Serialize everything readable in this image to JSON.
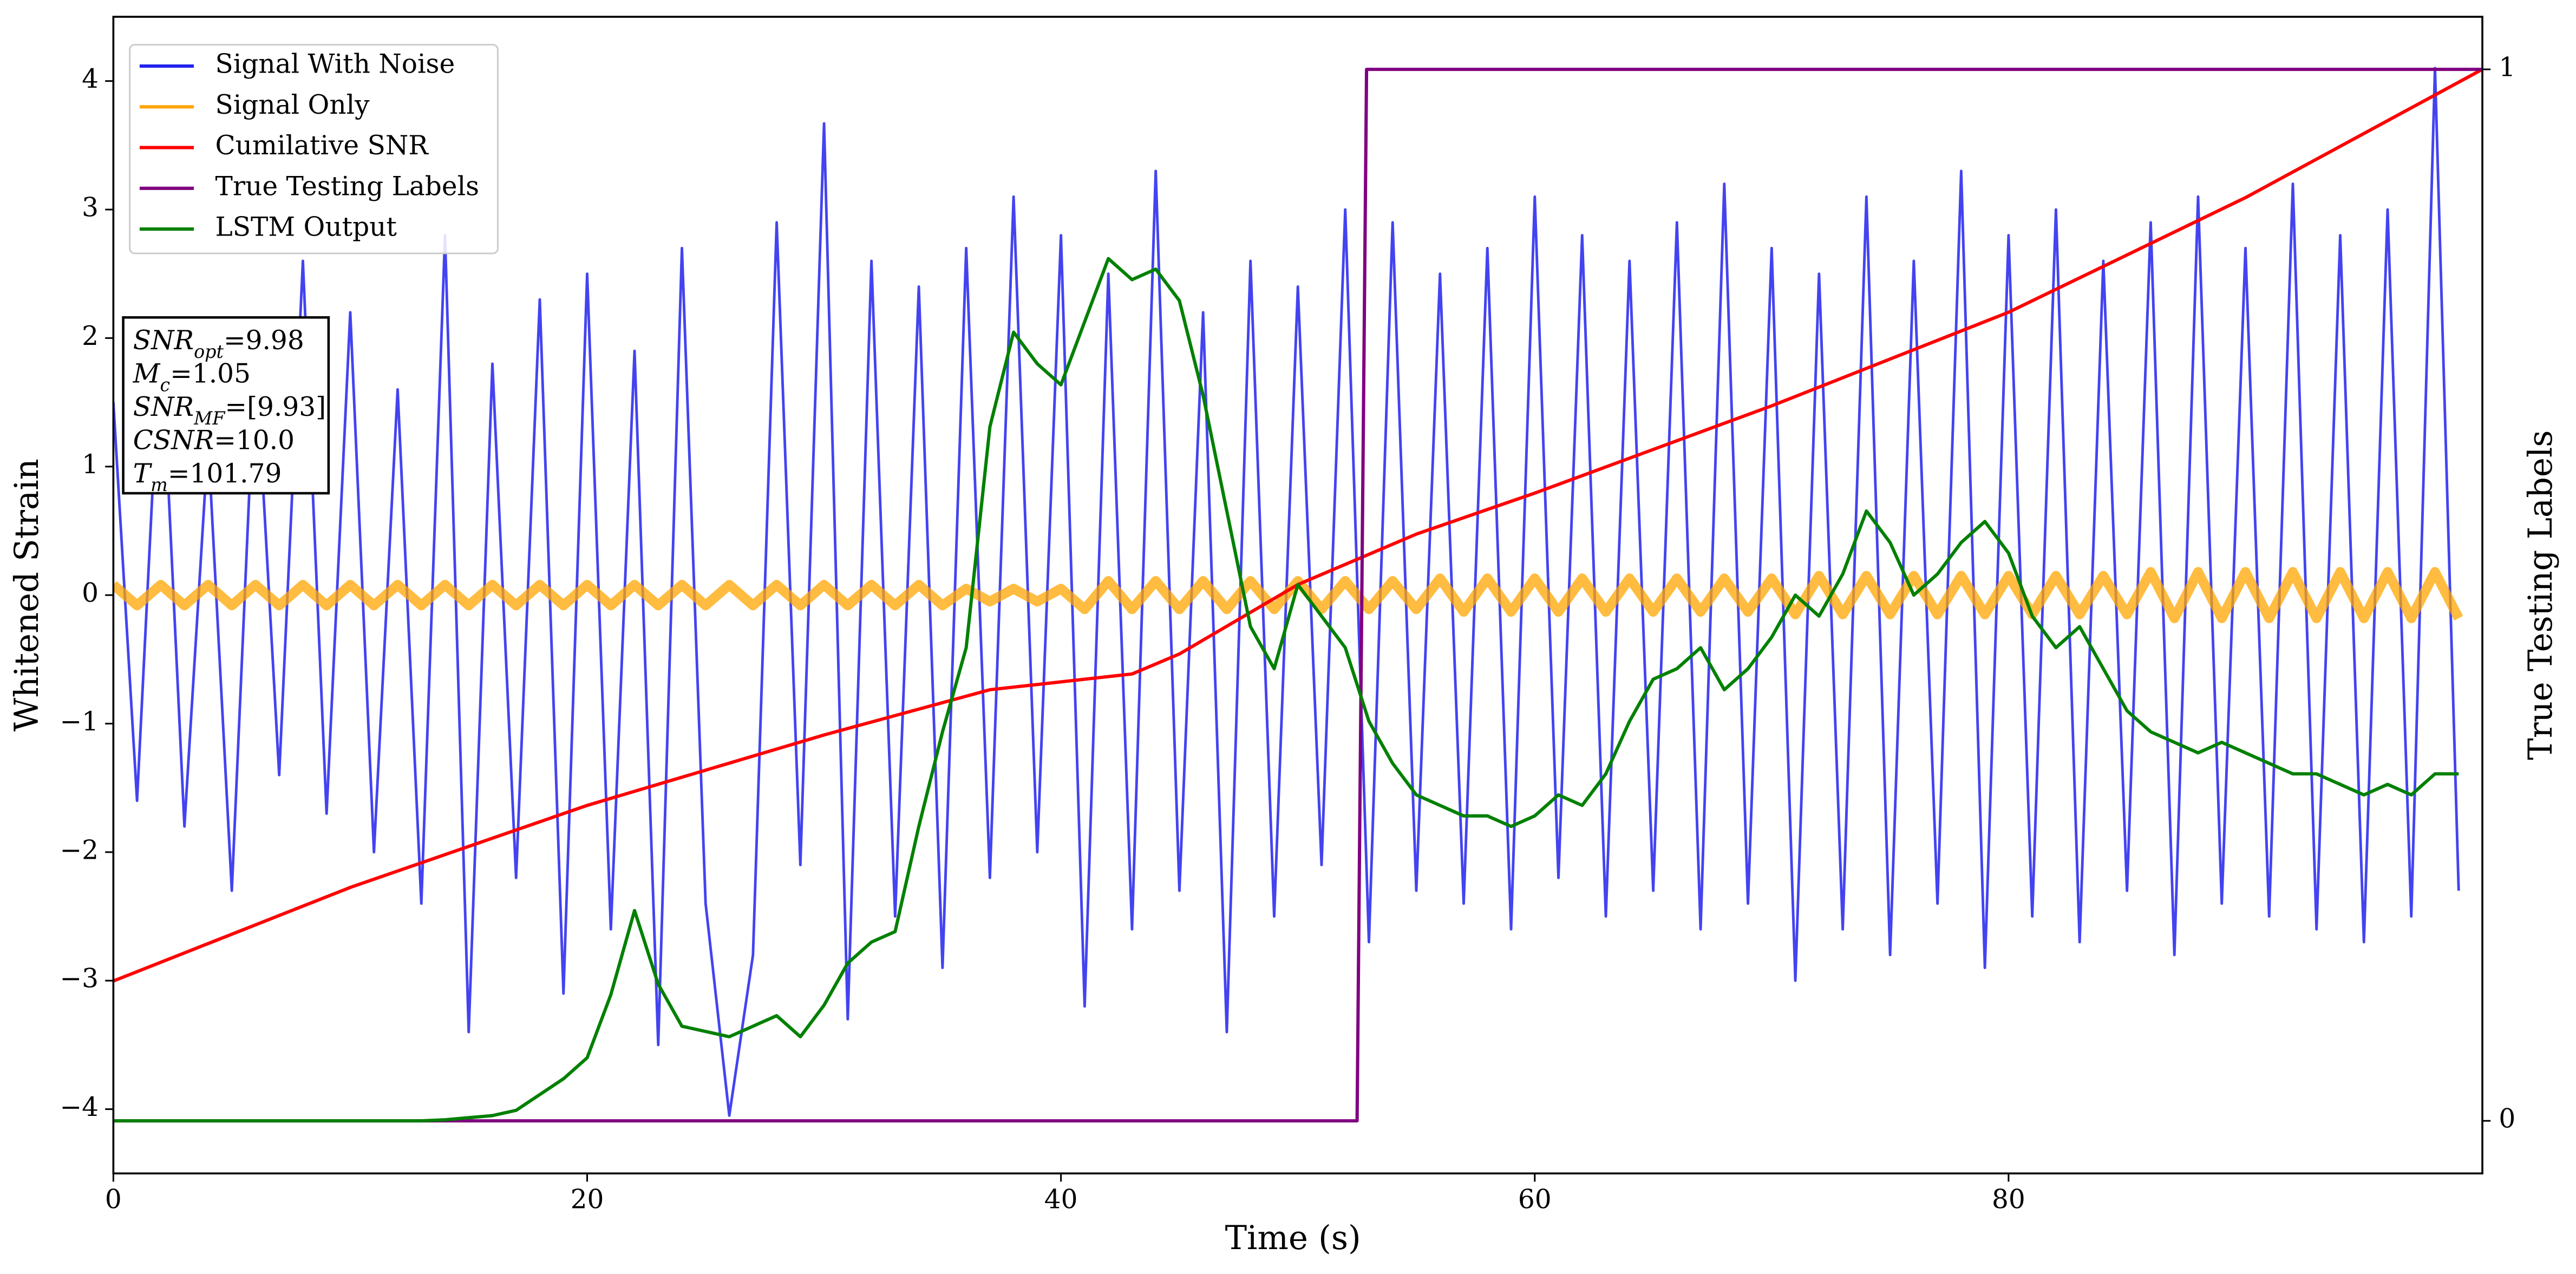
{
  "chart_data": {
    "type": "line",
    "xlabel": "Time (s)",
    "ylabel": "Whitened Strain",
    "y2label": "True Testing Labels",
    "xlim": [
      0,
      100
    ],
    "ylim": [
      -4.5,
      4.5
    ],
    "y2lim": [
      -0.05,
      1.05
    ],
    "xticks": [
      0,
      20,
      40,
      60,
      80
    ],
    "yticks": [
      {
        "value": -4,
        "label": "−4"
      },
      {
        "value": -3,
        "label": "−3"
      },
      {
        "value": -2,
        "label": "−2"
      },
      {
        "value": -1,
        "label": "−1"
      },
      0,
      1,
      2,
      3,
      4
    ],
    "y2ticks": [
      0,
      1
    ],
    "legend": "upper left",
    "x": [
      0,
      1,
      2,
      3,
      4,
      5,
      6,
      7,
      8,
      9,
      10,
      11,
      12,
      13,
      14,
      15,
      16,
      17,
      18,
      19,
      20,
      21,
      22,
      23,
      24,
      25,
      26,
      27,
      28,
      29,
      30,
      31,
      32,
      33,
      34,
      35,
      36,
      37,
      38,
      39,
      40,
      41,
      42,
      43,
      44,
      45,
      46,
      47,
      48,
      49,
      50,
      51,
      52,
      53,
      54,
      55,
      56,
      57,
      58,
      59,
      60,
      61,
      62,
      63,
      64,
      65,
      66,
      67,
      68,
      69,
      70,
      71,
      72,
      73,
      74,
      75,
      76,
      77,
      78,
      79,
      80,
      81,
      82,
      83,
      84,
      85,
      86,
      87,
      88,
      89,
      90,
      91,
      92,
      93,
      94,
      95,
      96,
      97,
      98,
      99
    ],
    "series": [
      {
        "name": "Signal With Noise",
        "color": "#2222ee",
        "values": [
          1.5,
          -1.6,
          2.1,
          -1.8,
          1.2,
          -2.3,
          1.9,
          -1.4,
          2.6,
          -1.7,
          2.2,
          -2.0,
          1.6,
          -2.4,
          2.8,
          -3.4,
          1.8,
          -2.2,
          2.3,
          -3.1,
          2.5,
          -2.6,
          1.9,
          -3.5,
          2.7,
          -2.4,
          -4.05,
          -2.8,
          2.9,
          -2.1,
          3.67,
          -3.3,
          2.6,
          -2.5,
          2.4,
          -2.9,
          2.7,
          -2.2,
          3.1,
          -2.0,
          2.8,
          -3.2,
          2.5,
          -2.6,
          3.3,
          -2.3,
          2.2,
          -3.4,
          2.6,
          -2.5,
          2.4,
          -2.1,
          3.0,
          -2.7,
          2.9,
          -2.3,
          2.5,
          -2.4,
          2.7,
          -2.6,
          3.1,
          -2.2,
          2.8,
          -2.5,
          2.6,
          -2.3,
          2.9,
          -2.6,
          3.2,
          -2.4,
          2.7,
          -3.0,
          2.5,
          -2.6,
          3.1,
          -2.8,
          2.6,
          -2.4,
          3.3,
          -2.9,
          2.8,
          -2.5,
          3.0,
          -2.7,
          2.6,
          -2.3,
          2.9,
          -2.8,
          3.1,
          -2.4,
          2.7,
          -2.5,
          3.2,
          -2.6,
          2.8,
          -2.7,
          3.0,
          -2.5,
          4.1,
          -2.3
        ]
      },
      {
        "name": "Signal Only",
        "color": "#ffa500",
        "values": [
          0.08,
          -0.08,
          0.08,
          -0.08,
          0.08,
          -0.08,
          0.08,
          -0.08,
          0.08,
          -0.08,
          0.08,
          -0.08,
          0.08,
          -0.08,
          0.08,
          -0.08,
          0.08,
          -0.08,
          0.08,
          -0.08,
          0.08,
          -0.08,
          0.08,
          -0.08,
          0.08,
          -0.08,
          0.08,
          -0.08,
          0.08,
          -0.08,
          0.08,
          -0.08,
          0.08,
          -0.08,
          0.08,
          -0.08,
          0.05,
          -0.05,
          0.05,
          -0.05,
          0.05,
          -0.11,
          0.11,
          -0.11,
          0.11,
          -0.11,
          0.11,
          -0.11,
          0.11,
          -0.11,
          0.11,
          -0.11,
          0.11,
          -0.11,
          0.11,
          -0.11,
          0.13,
          -0.13,
          0.13,
          -0.13,
          0.13,
          -0.13,
          0.13,
          -0.13,
          0.13,
          -0.13,
          0.13,
          -0.13,
          0.13,
          -0.13,
          0.13,
          -0.15,
          0.15,
          -0.15,
          0.15,
          -0.15,
          0.15,
          -0.15,
          0.15,
          -0.15,
          0.15,
          -0.15,
          0.15,
          -0.15,
          0.15,
          -0.15,
          0.18,
          -0.18,
          0.18,
          -0.18,
          0.18,
          -0.18,
          0.18,
          -0.18,
          0.18,
          -0.18,
          0.18,
          -0.18,
          0.18,
          -0.18
        ]
      },
      {
        "name": "Cumilative SNR",
        "color": "#ff0000",
        "axis": "y2",
        "x": [
          0,
          10,
          20,
          30,
          37,
          43,
          45,
          50,
          55,
          60,
          70,
          80,
          90,
          100
        ],
        "values": [
          0.133,
          0.222,
          0.3,
          0.367,
          0.41,
          0.425,
          0.444,
          0.51,
          0.558,
          0.597,
          0.68,
          0.769,
          0.878,
          1.0
        ]
      },
      {
        "name": "True Testing Labels",
        "color": "#800080",
        "axis": "y2",
        "x": [
          0,
          52.5,
          52.9,
          100
        ],
        "values": [
          0,
          0,
          1,
          1
        ]
      },
      {
        "name": "LSTM Output",
        "color": "#008000",
        "axis": "y2",
        "values": [
          0,
          0,
          0,
          0,
          0,
          0,
          0,
          0,
          0,
          0,
          0,
          0,
          0,
          0,
          0.001,
          0.003,
          0.005,
          0.01,
          0.025,
          0.04,
          0.06,
          0.12,
          0.2,
          0.13,
          0.09,
          0.085,
          0.08,
          0.09,
          0.1,
          0.08,
          0.11,
          0.15,
          0.17,
          0.18,
          0.28,
          0.37,
          0.45,
          0.66,
          0.75,
          0.72,
          0.7,
          0.76,
          0.82,
          0.8,
          0.81,
          0.78,
          0.69,
          0.58,
          0.47,
          0.43,
          0.51,
          0.48,
          0.45,
          0.38,
          0.34,
          0.31,
          0.3,
          0.29,
          0.29,
          0.28,
          0.29,
          0.31,
          0.3,
          0.33,
          0.38,
          0.42,
          0.43,
          0.45,
          0.41,
          0.43,
          0.46,
          0.5,
          0.48,
          0.52,
          0.58,
          0.55,
          0.5,
          0.52,
          0.55,
          0.57,
          0.54,
          0.48,
          0.45,
          0.47,
          0.43,
          0.39,
          0.37,
          0.36,
          0.35,
          0.36,
          0.35,
          0.34,
          0.33,
          0.33,
          0.32,
          0.31,
          0.32,
          0.31,
          0.33,
          0.33
        ]
      }
    ],
    "annotation": [
      {
        "var": "SNR",
        "sub": "opt",
        "text": "=9.98"
      },
      {
        "var": "M",
        "sub": "c",
        "text": "=1.05"
      },
      {
        "var": "SNR",
        "sub": "MF",
        "text": "=[9.93]"
      },
      {
        "var": "CSNR",
        "text": "=10.0"
      },
      {
        "var": "T",
        "sub": "m",
        "text": "=101.79"
      }
    ]
  }
}
